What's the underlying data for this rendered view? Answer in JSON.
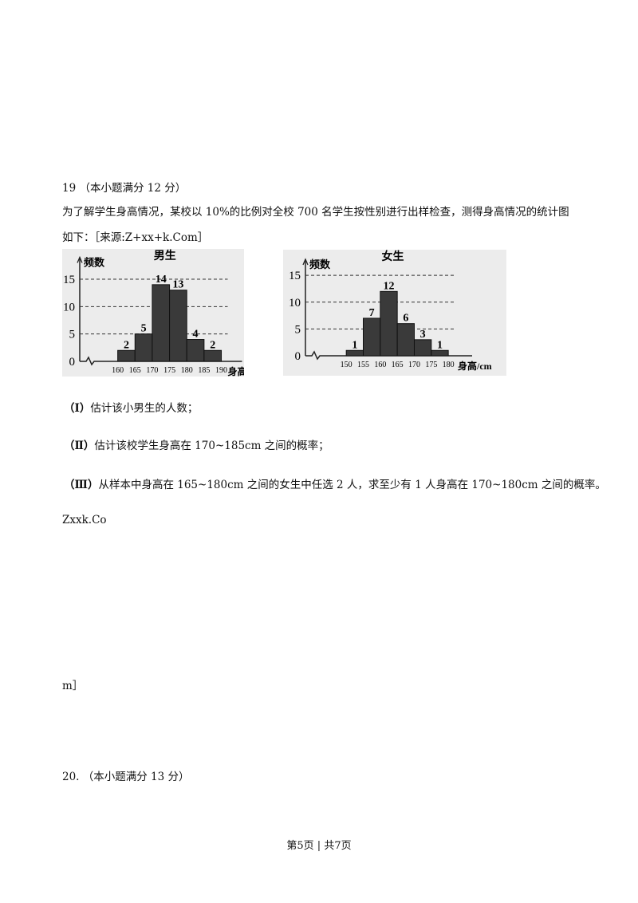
{
  "question19": {
    "heading": "19 （本小题满分 12 分）",
    "intro": "为了解学生身高情况，某校以 10%的比例对全校 700 名学生按性别进行出样检查，测得身高情况的统计图",
    "intro2": "如下：［来源:Z+xx+k.Com］",
    "parts": [
      {
        "label": "（Ⅰ）",
        "text": "估计该小男生的人数；"
      },
      {
        "label": "（Ⅱ）",
        "text": "估计该校学生身高在 170~185cm 之间的概率；"
      },
      {
        "label": "（Ⅲ）",
        "text": "从样本中身高在 165~180cm 之间的女生中任选 2 人，求至少有 1 人身高在 170~180cm 之间的概率。"
      }
    ],
    "note1": "Zxxk.Co",
    "note2": "m］"
  },
  "question20": {
    "heading": "20. （本小题满分 13 分）"
  },
  "footer": "第5页 | 共7页",
  "chart_data": [
    {
      "type": "histogram",
      "title": "男生",
      "y_label": "频数",
      "x_label": "身高/cm",
      "bins": [
        160,
        165,
        170,
        175,
        180,
        185,
        190
      ],
      "values": [
        2,
        5,
        14,
        13,
        4,
        2
      ],
      "xlim": [
        149,
        196
      ],
      "ylim": [
        0,
        19
      ],
      "yticks": [
        0,
        5,
        10,
        15
      ],
      "grid": true,
      "color": "#3a3a3a"
    },
    {
      "type": "histogram",
      "title": "女生",
      "y_label": "频数",
      "x_label": "身高/cm",
      "bins": [
        150,
        155,
        160,
        165,
        170,
        175,
        180
      ],
      "values": [
        1,
        7,
        12,
        6,
        3,
        1
      ],
      "xlim": [
        138,
        187
      ],
      "ylim": [
        0,
        18
      ],
      "yticks": [
        0,
        5,
        10,
        15
      ],
      "grid": true,
      "color": "#3a3a3a"
    }
  ]
}
